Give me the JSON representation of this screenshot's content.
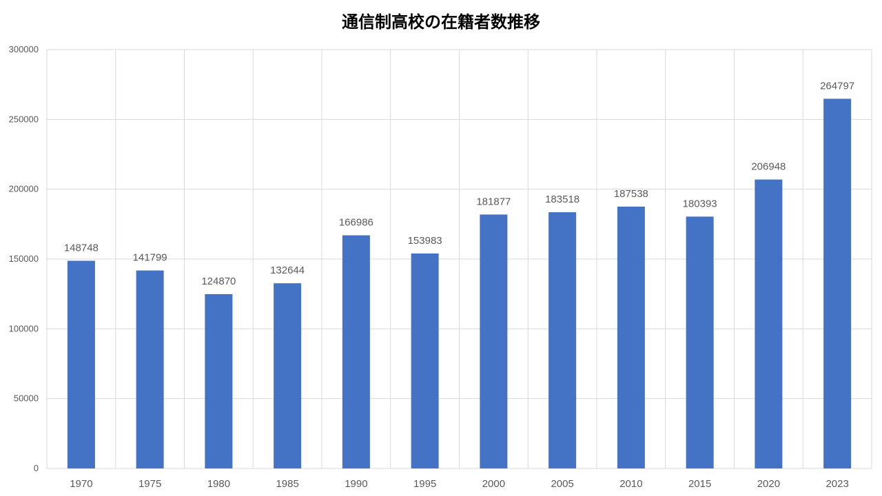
{
  "chart_data": {
    "type": "bar",
    "title": "通信制高校の在籍者数推移",
    "categories": [
      "1970",
      "1975",
      "1980",
      "1985",
      "1990",
      "1995",
      "2000",
      "2005",
      "2010",
      "2015",
      "2020",
      "2023"
    ],
    "values": [
      148748,
      141799,
      124870,
      132644,
      166986,
      153983,
      181877,
      183518,
      187538,
      180393,
      206948,
      264797
    ],
    "data_labels": [
      "148748",
      "141799",
      "124870",
      "132644",
      "166986",
      "153983",
      "181877",
      "183518",
      "187538",
      "180393",
      "206948",
      "264797"
    ],
    "y_ticks": [
      0,
      50000,
      100000,
      150000,
      200000,
      250000,
      300000
    ],
    "y_tick_labels": [
      "0",
      "50000",
      "100000",
      "150000",
      "200000",
      "250000",
      "300000"
    ],
    "ylim": [
      0,
      300000
    ],
    "xlabel": "",
    "ylabel": "",
    "grid": true,
    "legend": "none",
    "colors": {
      "bar": "#4472C4",
      "grid": "#D9D9D9",
      "text": "#595959"
    }
  }
}
